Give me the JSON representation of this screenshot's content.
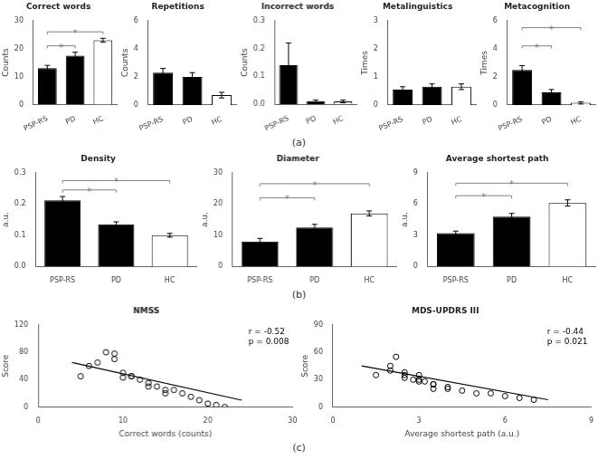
{
  "panel_labels": [
    "(a)",
    "(b)",
    "(c)"
  ],
  "chart_data": [
    {
      "type": "bar",
      "title": "Correct words",
      "ylabel": "Counts",
      "categories": [
        "PSP-RS",
        "PD",
        "HC"
      ],
      "values": [
        13.0,
        17.5,
        23.0
      ],
      "errors": [
        1.0,
        1.2,
        0.7
      ],
      "colors": [
        "black",
        "black",
        "white"
      ],
      "ylim": [
        0,
        30
      ],
      "yticks": [
        0,
        10,
        20,
        30
      ],
      "grid": false,
      "annotations": [
        {
          "from": "PSP-RS",
          "to": "PD",
          "y": 21,
          "label": "*"
        },
        {
          "from": "PSP-RS",
          "to": "HC",
          "y": 26,
          "label": "*"
        }
      ]
    },
    {
      "type": "bar",
      "title": "Repetitions",
      "ylabel": "Counts",
      "categories": [
        "PSP-RS",
        "PD",
        "HC"
      ],
      "values": [
        2.3,
        2.0,
        0.7
      ],
      "errors": [
        0.3,
        0.3,
        0.2
      ],
      "colors": [
        "black",
        "black",
        "white"
      ],
      "ylim": [
        0,
        6
      ],
      "yticks": [
        0,
        2,
        4,
        6
      ],
      "grid": false
    },
    {
      "type": "bar",
      "title": "Incorrect words",
      "ylabel": "Counts",
      "categories": [
        "PSP-RS",
        "PD",
        "HC"
      ],
      "values": [
        0.14,
        0.01,
        0.01
      ],
      "errors": [
        0.08,
        0.005,
        0.005
      ],
      "colors": [
        "black",
        "black",
        "white"
      ],
      "ylim": [
        0,
        0.3
      ],
      "yticks": [
        {
          "value": 0,
          "label": "0.0"
        },
        0.1,
        0.2,
        0.3
      ],
      "grid": false
    },
    {
      "type": "bar",
      "title": "Metalinguistics",
      "ylabel": "Times",
      "categories": [
        "PSP-RS",
        "PD",
        "HC"
      ],
      "values": [
        0.55,
        0.65,
        0.65
      ],
      "errors": [
        0.1,
        0.1,
        0.1
      ],
      "colors": [
        "black",
        "black",
        "white"
      ],
      "ylim": [
        0,
        3
      ],
      "yticks": [
        0,
        1,
        2,
        3
      ],
      "grid": false
    },
    {
      "type": "bar",
      "title": "Metacognition",
      "ylabel": "Times",
      "categories": [
        "PSP-RS",
        "PD",
        "HC"
      ],
      "values": [
        2.5,
        0.9,
        0.15
      ],
      "errors": [
        0.3,
        0.2,
        0.08
      ],
      "colors": [
        "black",
        "black",
        "white"
      ],
      "ylim": [
        0,
        6
      ],
      "yticks": [
        0,
        2,
        4,
        6
      ],
      "grid": false,
      "annotations": [
        {
          "from": "PSP-RS",
          "to": "PD",
          "y": 4.2,
          "label": "*"
        },
        {
          "from": "PSP-RS",
          "to": "HC",
          "y": 5.5,
          "label": "*"
        }
      ]
    },
    {
      "type": "bar",
      "title": "Density",
      "ylabel": "a.u.",
      "categories": [
        "PSP-RS",
        "PD",
        "HC"
      ],
      "values": [
        0.212,
        0.135,
        0.1
      ],
      "errors": [
        0.012,
        0.008,
        0.006
      ],
      "colors": [
        "black",
        "black",
        "white"
      ],
      "ylim": [
        0,
        0.3
      ],
      "yticks": [
        {
          "value": 0,
          "label": "0.0"
        },
        0.1,
        0.2,
        0.3
      ],
      "grid": false,
      "annotations": [
        {
          "from": "PSP-RS",
          "to": "PD",
          "y": 0.245,
          "label": "*"
        },
        {
          "from": "PSP-RS",
          "to": "HC",
          "y": 0.275,
          "label": "*"
        }
      ]
    },
    {
      "type": "bar",
      "title": "Diameter",
      "ylabel": "a.u.",
      "categories": [
        "PSP-RS",
        "PD",
        "HC"
      ],
      "values": [
        8.0,
        12.5,
        17.0
      ],
      "errors": [
        1.0,
        1.0,
        0.8
      ],
      "colors": [
        "black",
        "black",
        "white"
      ],
      "ylim": [
        0,
        30
      ],
      "yticks": [
        0,
        10,
        20,
        30
      ],
      "grid": false,
      "annotations": [
        {
          "from": "PSP-RS",
          "to": "PD",
          "y": 22,
          "label": "*"
        },
        {
          "from": "PSP-RS",
          "to": "HC",
          "y": 26.5,
          "label": "*"
        }
      ]
    },
    {
      "type": "bar",
      "title": "Average shortest path",
      "ylabel": "a.u.",
      "categories": [
        "PSP-RS",
        "PD",
        "HC"
      ],
      "values": [
        3.2,
        4.8,
        6.1
      ],
      "errors": [
        0.2,
        0.3,
        0.3
      ],
      "colors": [
        "black",
        "black",
        "white"
      ],
      "ylim": [
        0,
        9
      ],
      "yticks": [
        0,
        3,
        6,
        9
      ],
      "grid": false,
      "annotations": [
        {
          "from": "PSP-RS",
          "to": "PD",
          "y": 6.8,
          "label": "*"
        },
        {
          "from": "PSP-RS",
          "to": "HC",
          "y": 8.0,
          "label": "*"
        }
      ]
    },
    {
      "type": "scatter",
      "title": "NMSS",
      "xlabel": "Correct words (counts)",
      "ylabel": "Score",
      "xlim": [
        0,
        30
      ],
      "ylim": [
        0,
        120
      ],
      "xticks": [
        0,
        10,
        20,
        30
      ],
      "yticks": [
        0,
        40,
        80,
        120
      ],
      "grid": false,
      "annotations": [
        "r = -0.52",
        "p = 0.008"
      ],
      "series": [
        {
          "type": "scatter",
          "color": "black",
          "marker": "circle",
          "x": [
            5,
            7,
            8,
            9,
            10,
            10,
            11,
            12,
            13,
            14,
            15,
            16,
            17,
            18,
            19,
            20,
            21,
            22,
            6,
            9,
            11,
            13,
            15
          ],
          "values": [
            45,
            65,
            80,
            78,
            50,
            43,
            45,
            40,
            35,
            30,
            25,
            25,
            20,
            15,
            10,
            5,
            3,
            0,
            60,
            70,
            45,
            30,
            20
          ]
        },
        {
          "type": "line",
          "color": "black",
          "line_style": "solid",
          "x": [
            4,
            24
          ],
          "values": [
            65,
            10
          ]
        }
      ]
    },
    {
      "type": "scatter",
      "title": "MDS-UPDRS III",
      "xlabel": "Average shortest path (a.u.)",
      "ylabel": "Score",
      "xlim": [
        0,
        9
      ],
      "ylim": [
        0,
        90
      ],
      "xticks": [
        0,
        3,
        6,
        9
      ],
      "yticks": [
        0,
        30,
        60,
        90
      ],
      "grid": false,
      "annotations": [
        "r = -0.44",
        "p = 0.021"
      ],
      "series": [
        {
          "type": "scatter",
          "color": "black",
          "marker": "circle",
          "x": [
            1.5,
            2.0,
            2.2,
            2.5,
            2.5,
            2.8,
            3.0,
            3.0,
            3.2,
            3.5,
            3.5,
            4.0,
            4.5,
            5.0,
            5.5,
            6.0,
            6.5,
            7.0,
            2.0,
            2.5,
            3.0,
            3.5,
            4.0
          ],
          "values": [
            35,
            40,
            55,
            38,
            32,
            30,
            28,
            35,
            28,
            25,
            20,
            22,
            18,
            15,
            15,
            12,
            10,
            8,
            45,
            35,
            30,
            25,
            20
          ]
        },
        {
          "type": "line",
          "color": "black",
          "line_style": "solid",
          "x": [
            1.0,
            7.5
          ],
          "values": [
            45,
            8
          ]
        }
      ]
    }
  ]
}
